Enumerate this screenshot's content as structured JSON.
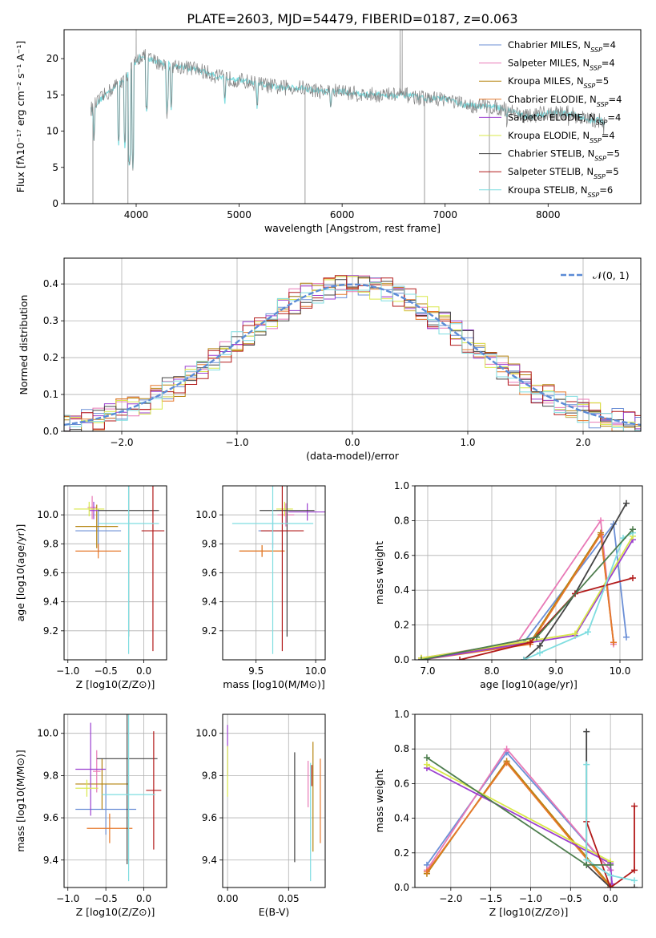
{
  "figure": {
    "title": "PLATE=2603, MJD=54479, FIBERID=0187, z=0.063"
  },
  "model_names": [
    {
      "name": "Chabrier MILES",
      "base": "Chabrier MILES, N",
      "sub": "SSP",
      "eq": "=4",
      "color": "#6b8fd6"
    },
    {
      "name": "Salpeter MILES",
      "base": "Salpeter MILES, N",
      "sub": "SSP",
      "eq": "=4",
      "color": "#e879b6"
    },
    {
      "name": "Kroupa MILES",
      "base": "Kroupa MILES, N",
      "sub": "SSP",
      "eq": "=5",
      "color": "#b5830e"
    },
    {
      "name": "Chabrier ELODIE",
      "base": "Chabrier ELODIE, N",
      "sub": "SSP",
      "eq": "=4",
      "color": "#e6782b"
    },
    {
      "name": "Salpeter ELODIE",
      "base": "Salpeter ELODIE, N",
      "sub": "SSP",
      "eq": "=4",
      "color": "#9b3fd0"
    },
    {
      "name": "Kroupa ELODIE",
      "base": "Kroupa ELODIE, N",
      "sub": "SSP",
      "eq": "=4",
      "color": "#d9e84a"
    },
    {
      "name": "Chabrier STELIB",
      "base": "Chabrier STELIB, N",
      "sub": "SSP",
      "eq": "=5",
      "color": "#444444"
    },
    {
      "name": "Salpeter STELIB",
      "base": "Salpeter STELIB, N",
      "sub": "SSP",
      "eq": "=5",
      "color": "#b21a1a"
    },
    {
      "name": "Kroupa STELIB",
      "base": "Kroupa STELIB, N",
      "sub": "SSP",
      "eq": "=6",
      "color": "#7fdde0"
    }
  ],
  "chart_data": [
    {
      "id": "spectrum",
      "type": "line",
      "xlabel": "wavelength [Angstrom, rest frame]",
      "ylabel": "Flux [fλ10⁻¹⁷ erg cm⁻² s⁻¹ A⁻¹]",
      "xlim": [
        3300,
        8900
      ],
      "ylim": [
        0,
        24
      ],
      "xticks": [
        4000,
        5000,
        6000,
        7000,
        8000
      ],
      "yticks": [
        0,
        5,
        10,
        15,
        20
      ],
      "legend_position": "top-right",
      "data_color": "#808080",
      "model_color": "#7fdde0",
      "continuum_points": [
        [
          3560,
          13
        ],
        [
          3700,
          15
        ],
        [
          3900,
          17.5
        ],
        [
          4050,
          20.5
        ],
        [
          4200,
          19.5
        ],
        [
          4400,
          19
        ],
        [
          4600,
          18.5
        ],
        [
          4800,
          17.5
        ],
        [
          5000,
          17
        ],
        [
          5200,
          16.5
        ],
        [
          5400,
          16
        ],
        [
          5600,
          16
        ],
        [
          5800,
          15.5
        ],
        [
          6000,
          15.5
        ],
        [
          6200,
          15
        ],
        [
          6400,
          15
        ],
        [
          6600,
          15
        ],
        [
          6800,
          14.5
        ],
        [
          7000,
          14.5
        ],
        [
          7200,
          13.5
        ],
        [
          7400,
          13.5
        ],
        [
          7600,
          13
        ],
        [
          7800,
          12
        ],
        [
          8000,
          12.5
        ],
        [
          8200,
          12.5
        ],
        [
          8400,
          11.5
        ],
        [
          8550,
          11.5
        ]
      ],
      "absorption_dips": [
        [
          3590,
          9
        ],
        [
          3830,
          8
        ],
        [
          3890,
          7.5
        ],
        [
          3934,
          4.5
        ],
        [
          3968,
          5
        ],
        [
          4102,
          12
        ],
        [
          4300,
          12
        ],
        [
          4340,
          13
        ],
        [
          4861,
          13.5
        ],
        [
          5175,
          13
        ],
        [
          5890,
          12.5
        ],
        [
          7600,
          11
        ],
        [
          8200,
          11
        ],
        [
          8500,
          11
        ],
        [
          8540,
          10.5
        ]
      ],
      "emission_spikes": [
        [
          4000,
          24
        ],
        [
          6563,
          24
        ],
        [
          6583,
          24
        ]
      ]
    },
    {
      "id": "residuals",
      "type": "histogram",
      "xlabel": "(data-model)/error",
      "ylabel": "Normed distribution",
      "xlim": [
        -2.5,
        2.5
      ],
      "ylim": [
        0,
        0.47
      ],
      "xticks": [
        -2,
        -1,
        0,
        1,
        2
      ],
      "yticks": [
        0.0,
        0.1,
        0.2,
        0.3,
        0.4
      ],
      "grid": true,
      "legend_position": "top-right",
      "reference_curve": {
        "name": "𝒩(0, 1)",
        "mean": 0,
        "sigma": 1,
        "color": "#5b8bd6"
      }
    },
    {
      "id": "age-vs-Z",
      "type": "errorbar",
      "xlabel": "Z [log10(Z/Z⊙)]",
      "ylabel": "age  [log10(age/yr)]",
      "xlim": [
        -1.05,
        0.3
      ],
      "ylim": [
        9.0,
        10.2
      ],
      "xticks": [
        -1.0,
        -0.5,
        0.0
      ],
      "yticks": [
        9.2,
        9.4,
        9.6,
        9.8,
        10.0
      ],
      "grid": true,
      "points": [
        {
          "model": "Chabrier MILES",
          "x": -0.6,
          "xerr": 0.3,
          "y": 9.89,
          "yerr": 0.15
        },
        {
          "model": "Salpeter MILES",
          "x": -0.68,
          "xerr": 0.06,
          "y": 10.05,
          "yerr": 0.08
        },
        {
          "model": "Kroupa MILES",
          "x": -0.62,
          "xerr": 0.28,
          "y": 9.92,
          "yerr": 0.15
        },
        {
          "model": "Chabrier ELODIE",
          "x": -0.6,
          "xerr": 0.3,
          "y": 9.75,
          "yerr": 0.05
        },
        {
          "model": "Salpeter ELODIE",
          "x": -0.66,
          "xerr": 0.06,
          "y": 10.03,
          "yerr": 0.06
        },
        {
          "model": "Kroupa ELODIE",
          "x": -0.72,
          "xerr": 0.2,
          "y": 10.04,
          "yerr": 0.05
        },
        {
          "model": "Chabrier STELIB",
          "x": -0.2,
          "xerr": 0.4,
          "y": 10.03,
          "yerr": 0.87
        },
        {
          "model": "Salpeter STELIB",
          "x": 0.12,
          "xerr": 0.15,
          "y": 9.89,
          "yerr": 0.83
        },
        {
          "model": "Kroupa STELIB",
          "x": -0.2,
          "xerr": 0.4,
          "y": 9.94,
          "yerr": 0.9
        }
      ]
    },
    {
      "id": "age-vs-mass",
      "type": "errorbar",
      "xlabel": "mass [log10(M/M⊙)]",
      "ylabel": "",
      "xlim": [
        9.22,
        10.08
      ],
      "ylim": [
        9.0,
        10.2
      ],
      "xticks": [
        9.5,
        10.0
      ],
      "yticks": [
        9.2,
        9.4,
        9.6,
        9.8,
        10.0
      ],
      "grid": true,
      "points": [
        {
          "model": "Chabrier MILES",
          "x": 9.64,
          "xerr": 0.12,
          "y": 9.89,
          "yerr": 0.12
        },
        {
          "model": "Salpeter MILES",
          "x": 9.75,
          "xerr": 0.07,
          "y": 10.0,
          "yerr": 0.08
        },
        {
          "model": "Kroupa MILES",
          "x": 9.55,
          "xerr": 0.19,
          "y": 9.75,
          "yerr": 0.04
        },
        {
          "model": "Chabrier ELODIE",
          "x": 9.55,
          "xerr": 0.19,
          "y": 9.75,
          "yerr": 0.04
        },
        {
          "model": "Salpeter ELODIE",
          "x": 9.93,
          "xerr": 0.16,
          "y": 10.02,
          "yerr": 0.06
        },
        {
          "model": "Kroupa ELODIE",
          "x": 9.74,
          "xerr": 0.07,
          "y": 10.04,
          "yerr": 0.05
        },
        {
          "model": "Chabrier STELIB",
          "x": 9.76,
          "xerr": 0.23,
          "y": 10.03,
          "yerr": 0.87
        },
        {
          "model": "Salpeter STELIB",
          "x": 9.72,
          "xerr": 0.18,
          "y": 9.89,
          "yerr": 0.83
        },
        {
          "model": "Kroupa STELIB",
          "x": 9.64,
          "xerr": 0.34,
          "y": 9.94,
          "yerr": 0.9
        }
      ]
    },
    {
      "id": "mass-weight-vs-age",
      "type": "line",
      "xlabel": "age  [log10(age/yr)]",
      "ylabel": "mass weight",
      "xlim": [
        6.8,
        10.35
      ],
      "ylim": [
        0,
        1
      ],
      "xticks": [
        7,
        8,
        9,
        10
      ],
      "yticks": [
        0.0,
        0.2,
        0.4,
        0.6,
        0.8,
        1.0
      ],
      "grid": true,
      "series": [
        {
          "model": "Chabrier MILES",
          "x": [
            6.9,
            8.5,
            9.9,
            10.1
          ],
          "y": [
            0.0,
            0.1,
            0.78,
            0.13
          ]
        },
        {
          "model": "Salpeter MILES",
          "x": [
            6.9,
            8.4,
            9.7,
            9.9
          ],
          "y": [
            0.01,
            0.1,
            0.8,
            0.09
          ]
        },
        {
          "model": "Kroupa MILES",
          "x": [
            6.9,
            8.6,
            9.7,
            9.9
          ],
          "y": [
            0.01,
            0.1,
            0.73,
            0.1
          ]
        },
        {
          "model": "Chabrier ELODIE",
          "x": [
            6.9,
            8.6,
            9.7,
            9.9
          ],
          "y": [
            0.0,
            0.09,
            0.72,
            0.1
          ]
        },
        {
          "model": "Salpeter ELODIE",
          "x": [
            6.9,
            9.3,
            10.2
          ],
          "y": [
            0.0,
            0.14,
            0.69
          ]
        },
        {
          "model": "Kroupa ELODIE",
          "x": [
            6.9,
            9.3,
            10.2
          ],
          "y": [
            0.01,
            0.15,
            0.71
          ]
        },
        {
          "model": "Chabrier STELIB",
          "x": [
            8.5,
            8.75,
            9.3,
            10.1
          ],
          "y": [
            0.0,
            0.08,
            0.38,
            0.9
          ]
        },
        {
          "model": "Salpeter STELIB",
          "x": [
            7.5,
            8.6,
            9.3,
            10.2
          ],
          "y": [
            0.0,
            0.1,
            0.38,
            0.47
          ]
        },
        {
          "model": "Kroupa STELIB",
          "x": [
            8.5,
            8.75,
            9.5,
            10.05,
            10.2
          ],
          "y": [
            0.0,
            0.04,
            0.16,
            0.7,
            0.73
          ]
        },
        {
          "model": "Chabrier STELIB",
          "x": [
            6.9,
            8.7,
            10.2
          ],
          "y": [
            0.0,
            0.13,
            0.75
          ],
          "color": "#4d7d4d"
        }
      ]
    },
    {
      "id": "mass-vs-Z",
      "type": "errorbar",
      "xlabel": "Z [log10(Z/Z⊙)]",
      "ylabel": "mass [log10(M/M⊙)]",
      "xlim": [
        -1.05,
        0.3
      ],
      "ylim": [
        9.27,
        10.09
      ],
      "xticks": [
        -1.0,
        -0.5,
        0.0
      ],
      "yticks": [
        9.4,
        9.6,
        9.8,
        10.0
      ],
      "grid": true,
      "points": [
        {
          "model": "Chabrier MILES",
          "x": -0.5,
          "xerr": 0.4,
          "y": 9.64,
          "yerr": 0.12
        },
        {
          "model": "Salpeter MILES",
          "x": -0.62,
          "xerr": 0.05,
          "y": 9.82,
          "yerr": 0.1
        },
        {
          "model": "Kroupa MILES",
          "x": -0.55,
          "xerr": 0.35,
          "y": 9.76,
          "yerr": 0.12
        },
        {
          "model": "Chabrier ELODIE",
          "x": -0.45,
          "xerr": 0.3,
          "y": 9.55,
          "yerr": 0.07
        },
        {
          "model": "Salpeter ELODIE",
          "x": -0.7,
          "xerr": 0.2,
          "y": 9.83,
          "yerr": 0.22
        },
        {
          "model": "Kroupa ELODIE",
          "x": -0.75,
          "xerr": 0.15,
          "y": 9.74,
          "yerr": 0.04
        },
        {
          "model": "Chabrier STELIB",
          "x": -0.22,
          "xerr": 0.4,
          "y": 9.88,
          "yerr": 0.5
        },
        {
          "model": "Salpeter STELIB",
          "x": 0.13,
          "xerr": 0.1,
          "y": 9.73,
          "yerr": 0.28
        },
        {
          "model": "Kroupa STELIB",
          "x": -0.2,
          "xerr": 0.35,
          "y": 9.71,
          "yerr": 0.41
        }
      ]
    },
    {
      "id": "mass-vs-EBV",
      "type": "errorbar",
      "xlabel": "E(B-V)",
      "ylabel": "",
      "xlim": [
        -0.004,
        0.08
      ],
      "ylim": [
        9.27,
        10.09
      ],
      "xticks": [
        0.0,
        0.05
      ],
      "yticks": [
        9.4,
        9.6,
        9.8,
        10.0
      ],
      "grid": true,
      "points": [
        {
          "model": "Salpeter ELODIE",
          "x": 0.0,
          "xerr": 0,
          "y": 9.92,
          "yerr": 0.12
        },
        {
          "model": "Kroupa ELODIE",
          "x": 0.0,
          "xerr": 0,
          "y": 9.82,
          "yerr": 0.12
        },
        {
          "model": "Chabrier STELIB",
          "x": 0.055,
          "xerr": 0,
          "y": 9.65,
          "yerr": 0.26
        },
        {
          "model": "Salpeter MILES",
          "x": 0.066,
          "xerr": 0,
          "y": 9.76,
          "yerr": 0.11
        },
        {
          "model": "Kroupa STELIB",
          "x": 0.068,
          "xerr": 0,
          "y": 9.58,
          "yerr": 0.28
        },
        {
          "model": "Salpeter STELIB",
          "x": 0.069,
          "xerr": 0,
          "y": 9.8,
          "yerr": 0.05
        },
        {
          "model": "Kroupa MILES",
          "x": 0.07,
          "xerr": 0,
          "y": 9.7,
          "yerr": 0.26
        },
        {
          "model": "Chabrier ELODIE",
          "x": 0.076,
          "xerr": 0,
          "y": 9.68,
          "yerr": 0.2
        }
      ]
    },
    {
      "id": "mass-weight-vs-Z",
      "type": "line",
      "xlabel": "Z [log10(Z/Z⊙)]",
      "ylabel": "mass weight",
      "xlim": [
        -2.45,
        0.4
      ],
      "ylim": [
        0,
        1
      ],
      "xticks": [
        -2.0,
        -1.5,
        -1.0,
        -0.5,
        0.0
      ],
      "yticks": [
        0.0,
        0.2,
        0.4,
        0.6,
        0.8,
        1.0
      ],
      "grid": true,
      "series": [
        {
          "model": "Chabrier MILES",
          "x": [
            -2.3,
            -1.3,
            0.0
          ],
          "y": [
            0.13,
            0.78,
            0.1
          ]
        },
        {
          "model": "Salpeter MILES",
          "x": [
            -2.3,
            -1.3,
            0.0
          ],
          "y": [
            0.1,
            0.8,
            0.1
          ]
        },
        {
          "model": "Kroupa MILES",
          "x": [
            -2.3,
            -1.3,
            0.0
          ],
          "y": [
            0.08,
            0.73,
            0.01
          ]
        },
        {
          "model": "Chabrier ELODIE",
          "x": [
            -2.3,
            -1.3,
            0.0
          ],
          "y": [
            0.09,
            0.72,
            0.0
          ]
        },
        {
          "model": "Salpeter ELODIE",
          "x": [
            -2.3,
            0.0,
            0.02
          ],
          "y": [
            0.69,
            0.14,
            0.02
          ]
        },
        {
          "model": "Kroupa ELODIE",
          "x": [
            -2.3,
            0.0
          ],
          "y": [
            0.71,
            0.15
          ]
        },
        {
          "model": "Chabrier STELIB",
          "x": [
            -0.3,
            -0.3,
            0.0,
            0.3
          ],
          "y": [
            0.9,
            0.13,
            0.0,
            0.0
          ]
        },
        {
          "model": "Salpeter STELIB",
          "x": [
            -0.3,
            0.0,
            0.3,
            0.3
          ],
          "y": [
            0.38,
            0.0,
            0.1,
            0.47
          ]
        },
        {
          "model": "Kroupa STELIB",
          "x": [
            -0.3,
            -0.3,
            0.0,
            0.3
          ],
          "y": [
            0.71,
            0.16,
            0.07,
            0.04
          ]
        },
        {
          "model": "Chabrier STELIB",
          "x": [
            -2.3,
            -0.3,
            0.0
          ],
          "y": [
            0.75,
            0.13,
            0.13
          ],
          "color": "#4d7d4d"
        }
      ]
    }
  ]
}
